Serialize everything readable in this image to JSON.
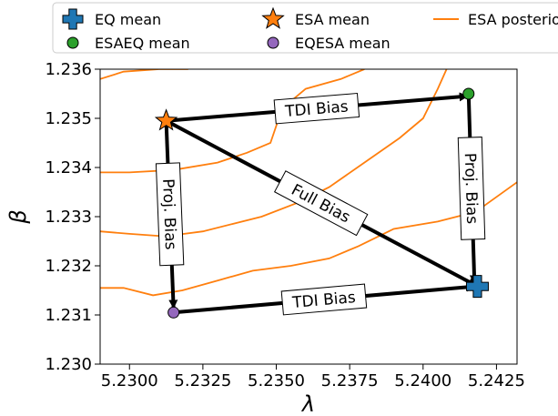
{
  "chart_data": {
    "type": "scatter",
    "xlabel": "λ",
    "ylabel": "β",
    "xlim": [
      5.229,
      5.2432
    ],
    "ylim": [
      1.23,
      1.236
    ],
    "xticks": [
      "5.2300",
      "5.2325",
      "5.2350",
      "5.2375",
      "5.2400",
      "5.2425"
    ],
    "xtick_values": [
      5.23,
      5.2325,
      5.235,
      5.2375,
      5.24,
      5.2425
    ],
    "yticks": [
      "1.230",
      "1.231",
      "1.232",
      "1.233",
      "1.234",
      "1.235",
      "1.236"
    ],
    "ytick_values": [
      1.23,
      1.231,
      1.232,
      1.233,
      1.234,
      1.235,
      1.236
    ],
    "grid": false,
    "legend": {
      "placement": "top",
      "entries": [
        {
          "label": "EQ mean",
          "marker": "plus",
          "color": "#1f77b4"
        },
        {
          "label": "ESA mean",
          "marker": "star",
          "color": "#ff7f0e"
        },
        {
          "label": "ESA posterior",
          "marker": "line",
          "color": "#ff7f0e"
        },
        {
          "label": "ESAEQ mean",
          "marker": "circle",
          "color": "#2ca02c"
        },
        {
          "label": "EQESA mean",
          "marker": "circle",
          "color": "#9467bd"
        }
      ]
    },
    "points": [
      {
        "name": "EQ mean",
        "x": 5.24185,
        "y": 1.23158,
        "marker": "plus",
        "color": "#1f77b4"
      },
      {
        "name": "ESA mean",
        "x": 5.23125,
        "y": 1.23495,
        "marker": "star",
        "color": "#ff7f0e"
      },
      {
        "name": "ESAEQ mean",
        "x": 5.24155,
        "y": 1.2355,
        "marker": "circle",
        "color": "#2ca02c"
      },
      {
        "name": "EQESA mean",
        "x": 5.2315,
        "y": 1.23105,
        "marker": "circle",
        "color": "#9467bd"
      }
    ],
    "arrows": [
      {
        "label": "TDI Bias",
        "from": [
          5.23125,
          1.23495
        ],
        "to": [
          5.2415,
          1.23545
        ]
      },
      {
        "label": "Proj. Bias",
        "from": [
          5.24155,
          1.2355
        ],
        "to": [
          5.24175,
          1.23165
        ]
      },
      {
        "label": "Full Bias",
        "from": [
          5.23125,
          1.23495
        ],
        "to": [
          5.2418,
          1.2316
        ]
      },
      {
        "label": "Proj. Bias",
        "from": [
          5.23125,
          1.23495
        ],
        "to": [
          5.2315,
          1.23115
        ]
      },
      {
        "label": "TDI Bias",
        "from": [
          5.2315,
          1.23105
        ],
        "to": [
          5.24175,
          1.23158
        ]
      }
    ],
    "contours": [
      [
        [
          5.229,
          1.2358
        ],
        [
          5.2298,
          1.23595
        ],
        [
          5.231,
          1.236
        ],
        [
          5.232,
          1.236
        ]
      ],
      [
        [
          5.229,
          1.2339
        ],
        [
          5.23,
          1.2339
        ],
        [
          5.2315,
          1.23395
        ],
        [
          5.233,
          1.2341
        ],
        [
          5.234,
          1.2343
        ],
        [
          5.2348,
          1.2345
        ],
        [
          5.2352,
          1.2352
        ],
        [
          5.236,
          1.2356
        ],
        [
          5.2372,
          1.2358
        ],
        [
          5.238,
          1.236
        ]
      ],
      [
        [
          5.229,
          1.2327
        ],
        [
          5.23,
          1.23265
        ],
        [
          5.2312,
          1.2326
        ],
        [
          5.2325,
          1.2327
        ],
        [
          5.2335,
          1.23285
        ],
        [
          5.2345,
          1.233
        ],
        [
          5.2358,
          1.2333
        ],
        [
          5.2368,
          1.2336
        ],
        [
          5.238,
          1.2341
        ],
        [
          5.2392,
          1.2346
        ],
        [
          5.24,
          1.235
        ],
        [
          5.2405,
          1.2356
        ],
        [
          5.2408,
          1.236
        ]
      ],
      [
        [
          5.229,
          1.23155
        ],
        [
          5.2298,
          1.23155
        ],
        [
          5.2308,
          1.2314
        ],
        [
          5.2318,
          1.2315
        ],
        [
          5.233,
          1.2317
        ],
        [
          5.2342,
          1.2319
        ],
        [
          5.2355,
          1.232
        ],
        [
          5.2368,
          1.23215
        ],
        [
          5.2378,
          1.2324
        ],
        [
          5.239,
          1.23275
        ],
        [
          5.2405,
          1.2329
        ],
        [
          5.2418,
          1.2331
        ],
        [
          5.2432,
          1.2337
        ]
      ]
    ]
  }
}
